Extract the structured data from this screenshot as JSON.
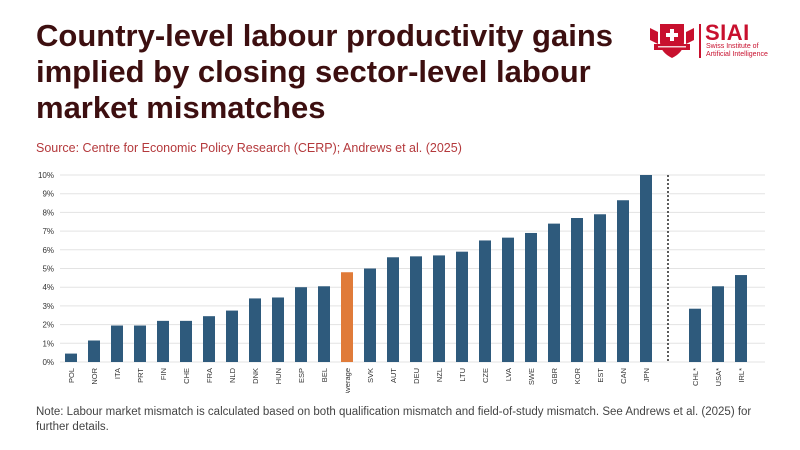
{
  "header": {
    "title": "Country-level labour productivity gains implied by closing sector-level labour market mismatches",
    "source": "Source: Centre for Economic Policy Research (CERP); Andrews et al. (2025)"
  },
  "logo": {
    "name": "SIAI",
    "subtitle_line1": "Swiss Institute of",
    "subtitle_line2": "Artificial Intelligence",
    "emblem_icon": "swiss-cross-shield-icon",
    "brand_color": "#c8102e"
  },
  "note": "Note: Labour market mismatch is calculated based on both qualification mismatch and field-of-study mismatch. See Andrews et al. (2025) for further details.",
  "chart_data": {
    "type": "bar",
    "title": "",
    "xlabel": "",
    "ylabel": "",
    "ylim": [
      0,
      10
    ],
    "yticks": [
      "0%",
      "1%",
      "2%",
      "3%",
      "4%",
      "5%",
      "6%",
      "7%",
      "8%",
      "9%",
      "10%"
    ],
    "grid": true,
    "colors": {
      "bar": "#2e5a7c",
      "average": "#e07b39",
      "grid": "#e3e3e3"
    },
    "main_group": {
      "categories": [
        "POL",
        "NOR",
        "ITA",
        "PRT",
        "FIN",
        "CHE",
        "FRA",
        "NLD",
        "DNK",
        "HUN",
        "ESP",
        "BEL",
        "Average",
        "SVK",
        "AUT",
        "DEU",
        "NZL",
        "LTU",
        "CZE",
        "LVA",
        "SWE",
        "GBR",
        "KOR",
        "EST",
        "CAN",
        "JPN"
      ],
      "values": [
        0.45,
        1.15,
        1.95,
        1.95,
        2.2,
        2.2,
        2.45,
        2.75,
        3.4,
        3.45,
        4.0,
        4.05,
        4.8,
        5.0,
        5.6,
        5.65,
        5.7,
        5.9,
        6.5,
        6.65,
        6.9,
        7.4,
        7.7,
        7.9,
        8.65,
        10.0
      ],
      "highlight": "Average"
    },
    "separate_group": {
      "categories": [
        "CHL*",
        "USA*",
        "IRL*"
      ],
      "values": [
        2.85,
        4.05,
        4.65
      ]
    }
  }
}
